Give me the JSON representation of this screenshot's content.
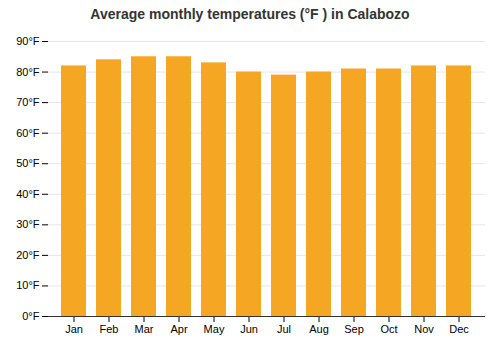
{
  "chart_data": {
    "type": "bar",
    "title": "Average monthly temperatures (°F ) in Calabozo",
    "categories": [
      "Jan",
      "Feb",
      "Mar",
      "Apr",
      "May",
      "Jun",
      "Jul",
      "Aug",
      "Sep",
      "Oct",
      "Nov",
      "Dec"
    ],
    "values": [
      82,
      84,
      85,
      85,
      83,
      80,
      79,
      80,
      81,
      81,
      82,
      82
    ],
    "color": "#f5a623",
    "ylim": [
      0,
      90
    ],
    "yticks": [
      {
        "value": 0,
        "label": "0°F"
      },
      {
        "value": 10,
        "label": "10°F"
      },
      {
        "value": 20,
        "label": "20°F"
      },
      {
        "value": 30,
        "label": "30°F"
      },
      {
        "value": 40,
        "label": "40°F"
      },
      {
        "value": 50,
        "label": "50°F"
      },
      {
        "value": 60,
        "label": "60°F"
      },
      {
        "value": 70,
        "label": "70°F"
      },
      {
        "value": 80,
        "label": "80°F"
      },
      {
        "value": 90,
        "label": "90°F"
      }
    ],
    "grid": true
  }
}
